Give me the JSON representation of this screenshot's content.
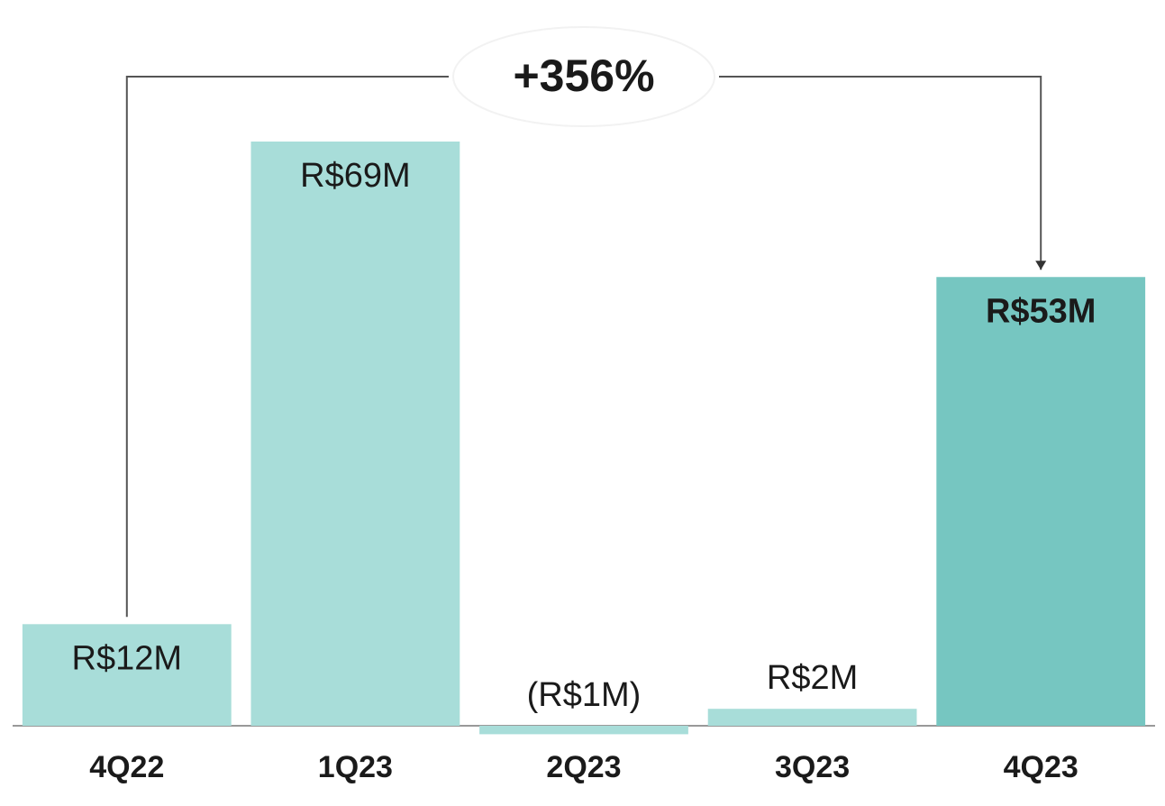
{
  "chart_data": {
    "type": "bar",
    "annotation": "+356%",
    "categories": [
      "4Q22",
      "1Q23",
      "2Q23",
      "3Q23",
      "4Q23"
    ],
    "values": [
      12,
      69,
      -1,
      2,
      53
    ],
    "value_labels": [
      "R$12M",
      "R$69M",
      "(R$1M)",
      "R$2M",
      "R$53M"
    ],
    "colors": [
      "#a8ddd9",
      "#a8ddd9",
      "#a8ddd9",
      "#a8ddd9",
      "#76c6c1"
    ]
  }
}
